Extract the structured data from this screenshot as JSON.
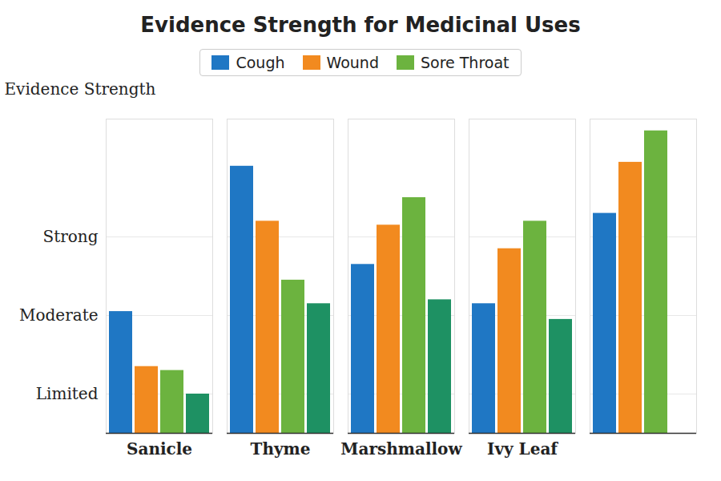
{
  "chart_data": {
    "type": "bar",
    "title": "Evidence Strength for Medicinal Uses",
    "ylabel": "Evidence Strength",
    "categories": [
      "Sanicle",
      "Thyme",
      "Marshmallow",
      "Ivy Leaf",
      null
    ],
    "series": [
      {
        "name": "Cough",
        "color": "#1f77c4",
        "values": [
          1.55,
          3.4,
          2.15,
          1.65,
          2.8
        ]
      },
      {
        "name": "Wound",
        "color": "#f28a1f",
        "values": [
          0.85,
          2.7,
          2.65,
          2.35,
          3.45
        ]
      },
      {
        "name": "Sore Throat",
        "color": "#6cb33f",
        "values": [
          0.8,
          1.95,
          3.0,
          2.7,
          3.85
        ]
      },
      {
        "name": null,
        "color": "#1e9163",
        "values": [
          0.5,
          1.65,
          1.7,
          1.45,
          null
        ]
      }
    ],
    "ylim": [
      0,
      4
    ],
    "yticks": [
      {
        "value": 0.5,
        "label": "Limited"
      },
      {
        "value": 1.5,
        "label": "Moderate"
      },
      {
        "value": 2.5,
        "label": "Strong"
      }
    ],
    "grid": true,
    "legend": "top"
  }
}
